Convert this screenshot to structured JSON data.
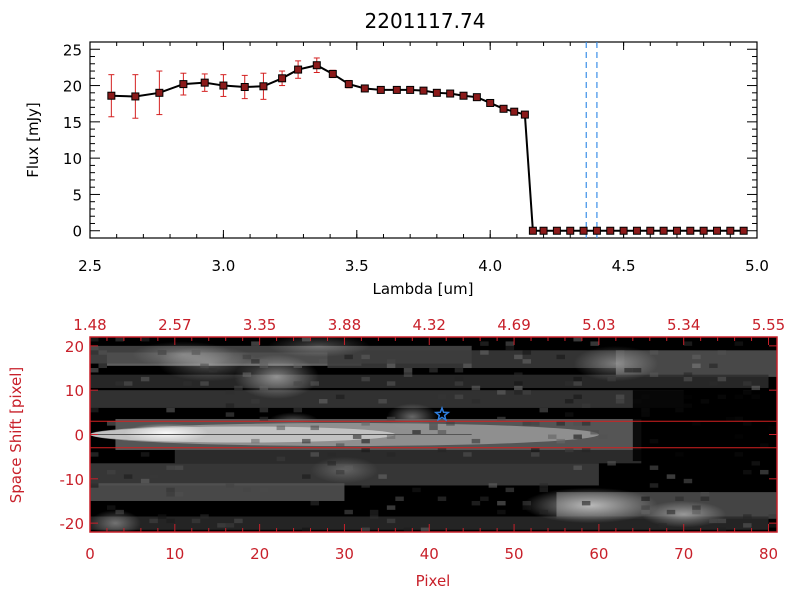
{
  "colors": {
    "line": "#000000",
    "marker": "#8b1a1a",
    "errorbar": "#d42020",
    "dashed": "#3b8fe8",
    "axis_red": "#c8202a",
    "star": "#2f7fe0",
    "slit_line": "#d42020"
  },
  "chart_data": [
    {
      "type": "line",
      "title": "2201117.74",
      "xlabel": "Lambda [um]",
      "ylabel": "Flux [mJy]",
      "xlim": [
        2.5,
        5.0
      ],
      "ylim": [
        -1,
        26
      ],
      "x_ticks": [
        2.5,
        3.0,
        3.5,
        4.0,
        4.5,
        5.0
      ],
      "x_tick_labels": [
        "2.5",
        "3.0",
        "3.5",
        "4.0",
        "4.5",
        "5.0"
      ],
      "y_ticks": [
        0,
        5,
        10,
        15,
        20,
        25
      ],
      "y_tick_labels": [
        "0",
        "5",
        "10",
        "15",
        "20",
        "25"
      ],
      "series": [
        {
          "name": "flux",
          "x": [
            2.58,
            2.67,
            2.76,
            2.85,
            2.93,
            3.0,
            3.08,
            3.15,
            3.22,
            3.28,
            3.35,
            3.41,
            3.47,
            3.53,
            3.59,
            3.65,
            3.7,
            3.75,
            3.8,
            3.85,
            3.9,
            3.95,
            4.0,
            4.05,
            4.09,
            4.13,
            4.16,
            4.2,
            4.25,
            4.3,
            4.35,
            4.4,
            4.45,
            4.5,
            4.55,
            4.6,
            4.65,
            4.7,
            4.75,
            4.8,
            4.85,
            4.9,
            4.95
          ],
          "y": [
            18.6,
            18.5,
            19.0,
            20.2,
            20.4,
            20.0,
            19.8,
            19.9,
            21.0,
            22.2,
            22.8,
            21.6,
            20.2,
            19.6,
            19.4,
            19.4,
            19.4,
            19.3,
            19.0,
            18.9,
            18.6,
            18.4,
            17.6,
            16.8,
            16.4,
            16.0,
            0.0,
            0.0,
            0.0,
            0.0,
            0.0,
            0.0,
            0.0,
            0.0,
            0.0,
            0.0,
            0.0,
            0.0,
            0.0,
            0.0,
            0.0,
            0.0,
            0.0
          ],
          "yerr": [
            2.9,
            3.0,
            3.0,
            1.5,
            1.2,
            1.5,
            1.6,
            1.8,
            1.0,
            1.2,
            1.0,
            0.5,
            0.5,
            0.3,
            0.3,
            0.3,
            0.3,
            0.3,
            0.3,
            0.3,
            0.3,
            0.3,
            0.3,
            0.3,
            0.3,
            0.3,
            0,
            0,
            0,
            0,
            0,
            0,
            0,
            0,
            0,
            0,
            0,
            0,
            0,
            0,
            0,
            0,
            0
          ]
        }
      ],
      "vertical_lines": [
        4.36,
        4.4
      ]
    },
    {
      "type": "heatmap",
      "xlabel": "Pixel",
      "ylabel": "Space Shift [pixel]",
      "xlim": [
        0,
        81
      ],
      "ylim": [
        -22,
        22
      ],
      "x_ticks": [
        0,
        10,
        20,
        30,
        40,
        50,
        60,
        70,
        80
      ],
      "x_tick_labels": [
        "0",
        "10",
        "20",
        "30",
        "40",
        "50",
        "60",
        "70",
        "80"
      ],
      "y_ticks": [
        -20,
        -10,
        0,
        10,
        20
      ],
      "y_tick_labels": [
        "-20",
        "-10",
        "0",
        "10",
        "20"
      ],
      "top_ticks": [
        0,
        10,
        20,
        30,
        40,
        50,
        60,
        70,
        80
      ],
      "top_tick_labels": [
        "1.48",
        "2.57",
        "3.35",
        "3.88",
        "4.32",
        "4.69",
        "5.03",
        "5.34",
        "5.55"
      ],
      "slit_lines": [
        3,
        -3
      ],
      "star": {
        "x": 41.5,
        "y": 4.5
      }
    }
  ]
}
